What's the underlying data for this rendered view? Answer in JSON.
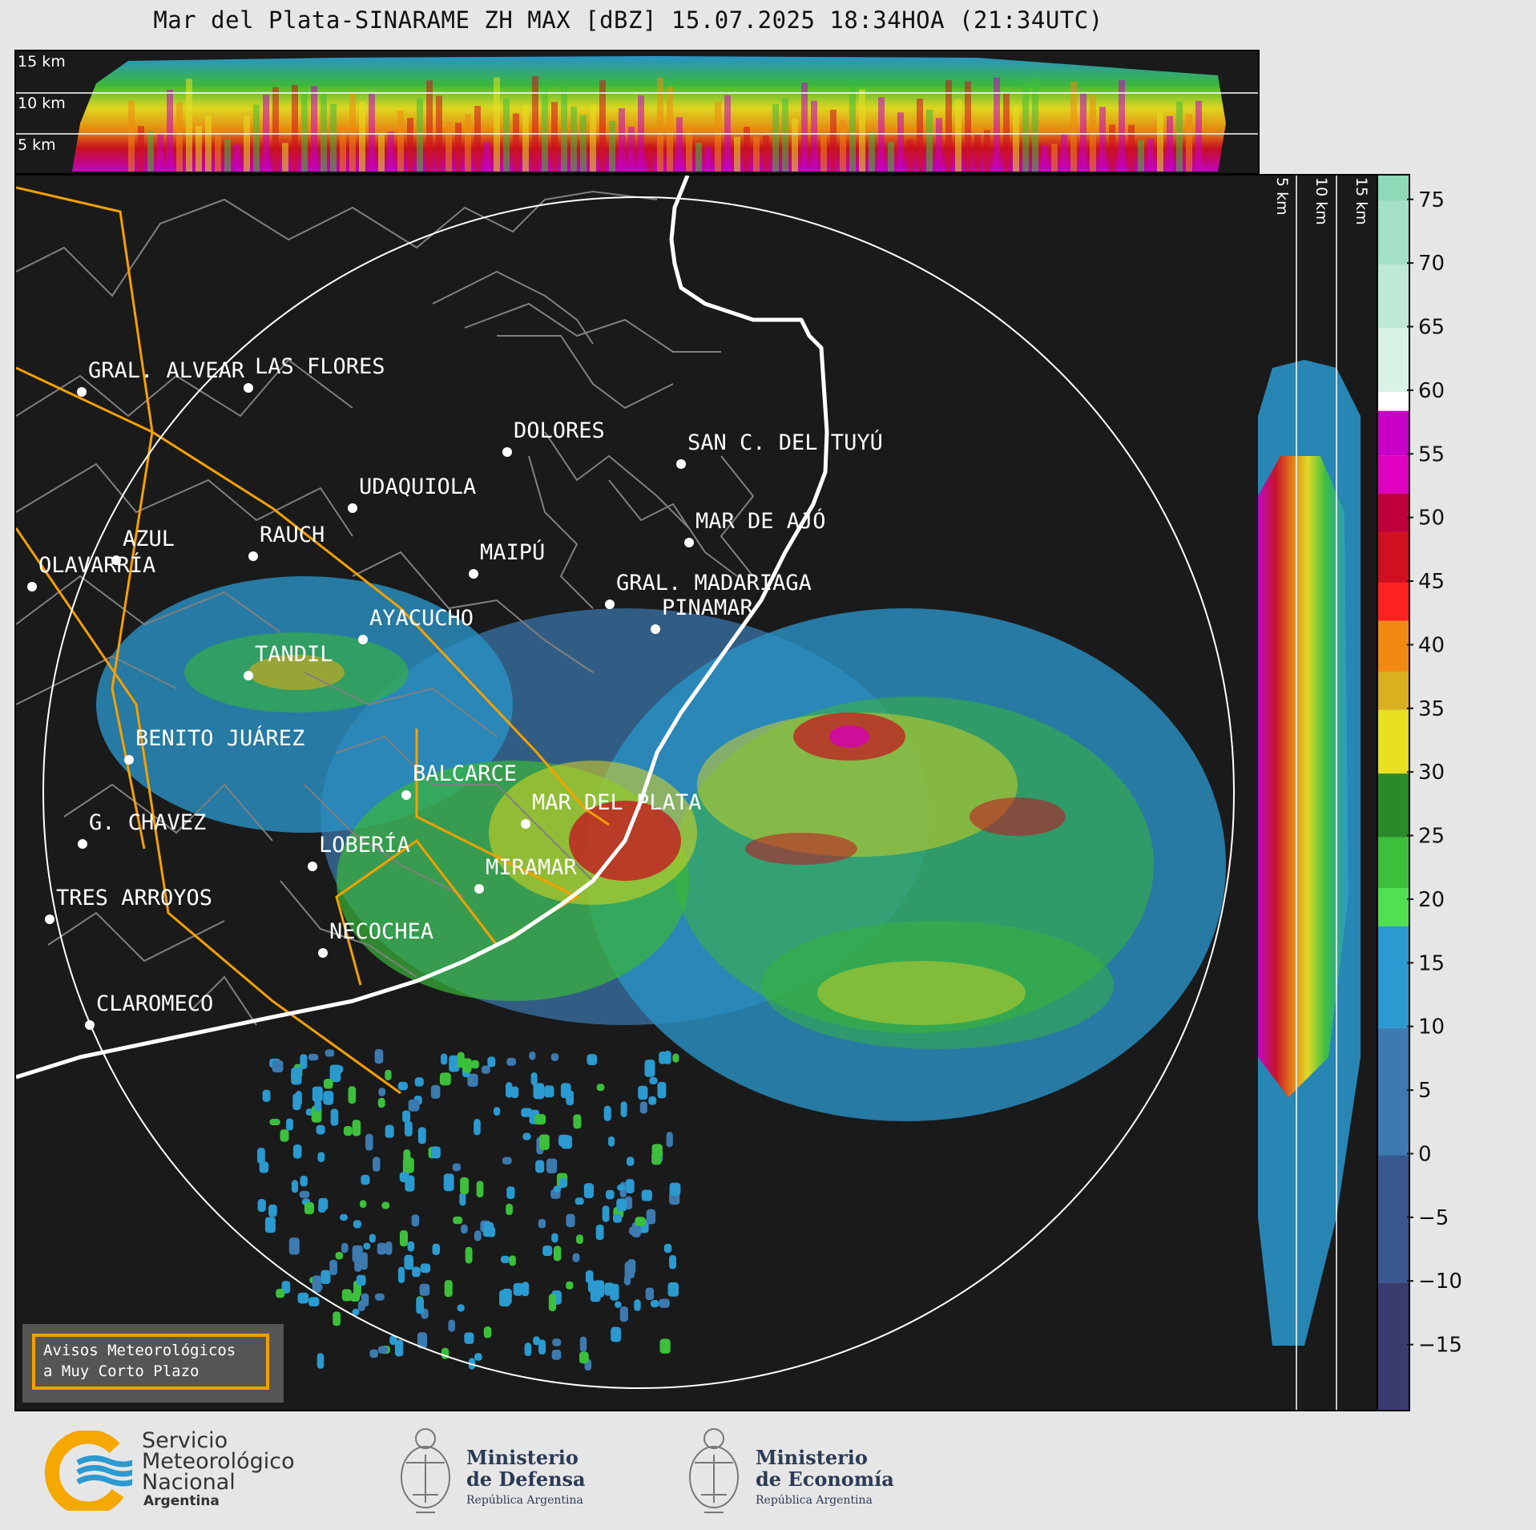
{
  "title": "Mar del Plata-SINARAME ZH MAX [dBZ] 15.07.2025 18:34HOA (21:34UTC)",
  "profile_top": {
    "height_labels": [
      "15 km",
      "10 km",
      "5 km"
    ]
  },
  "profile_side": {
    "height_labels": [
      "5 km",
      "10 km",
      "15 km"
    ]
  },
  "colorbar": {
    "ticks": [
      "75",
      "70",
      "65",
      "60",
      "55",
      "50",
      "45",
      "40",
      "35",
      "30",
      "25",
      "20",
      "15",
      "10",
      "5",
      "0",
      "−5",
      "−10",
      "−15"
    ],
    "bands": [
      {
        "from": 75,
        "to": 77,
        "color": "#8ed9b8"
      },
      {
        "from": 70,
        "to": 75,
        "color": "#a3e0c6"
      },
      {
        "from": 65,
        "to": 70,
        "color": "#bde9d5"
      },
      {
        "from": 60,
        "to": 65,
        "color": "#d8f2e6"
      },
      {
        "from": 58.5,
        "to": 60,
        "color": "#ffffff"
      },
      {
        "from": 55,
        "to": 58.5,
        "color": "#c800c8"
      },
      {
        "from": 52,
        "to": 55,
        "color": "#e000c0"
      },
      {
        "from": 49,
        "to": 52,
        "color": "#c0003c"
      },
      {
        "from": 45,
        "to": 49,
        "color": "#d01020"
      },
      {
        "from": 42,
        "to": 45,
        "color": "#ff2020"
      },
      {
        "from": 38,
        "to": 42,
        "color": "#f08a10"
      },
      {
        "from": 35,
        "to": 38,
        "color": "#d8b020"
      },
      {
        "from": 30,
        "to": 35,
        "color": "#e8e020"
      },
      {
        "from": 25,
        "to": 30,
        "color": "#2a8a2a"
      },
      {
        "from": 21,
        "to": 25,
        "color": "#3cc03c"
      },
      {
        "from": 18,
        "to": 21,
        "color": "#50e050"
      },
      {
        "from": 10,
        "to": 18,
        "color": "#2a9ad0"
      },
      {
        "from": 0,
        "to": 10,
        "color": "#3c7ab0"
      },
      {
        "from": -10,
        "to": 0,
        "color": "#3a5890"
      },
      {
        "from": -20,
        "to": -10,
        "color": "#3a3c70"
      }
    ]
  },
  "places": [
    {
      "name": "GRAL. ALVEAR",
      "color": "#ffffff"
    },
    {
      "name": "LAS FLORES",
      "color": "#ffffff"
    },
    {
      "name": "DOLORES",
      "color": "#ffffff"
    },
    {
      "name": "SAN C. DEL TUYÚ",
      "color": "#ffffff"
    },
    {
      "name": "UDAQUIOLA",
      "color": "#ffffff"
    },
    {
      "name": "MAR DE AJÓ",
      "color": "#ffffff"
    },
    {
      "name": "AZUL",
      "color": "#ffffff"
    },
    {
      "name": "RAUCH",
      "color": "#ffffff"
    },
    {
      "name": "MAIPÚ",
      "color": "#ffffff"
    },
    {
      "name": "OLAVARRÍA",
      "color": "#ffffff"
    },
    {
      "name": "GRAL. MADARIAGA",
      "color": "#ffffff"
    },
    {
      "name": "PINAMAR",
      "color": "#ffffff"
    },
    {
      "name": "AYACUCHO",
      "color": "#ffffff"
    },
    {
      "name": "TANDIL",
      "color": "#ffffff"
    },
    {
      "name": "BENITO JUÁREZ",
      "color": "#ffffff"
    },
    {
      "name": "BALCARCE",
      "color": "#ffffff"
    },
    {
      "name": "MAR DEL PLATA",
      "color": "#ffffff"
    },
    {
      "name": "G. CHAVEZ",
      "color": "#ffffff"
    },
    {
      "name": "LOBERÍA",
      "color": "#ffffff"
    },
    {
      "name": "MIRAMAR",
      "color": "#ffffff"
    },
    {
      "name": "TRES ARROYOS",
      "color": "#ffffff"
    },
    {
      "name": "NECOCHEA",
      "color": "#ffffff"
    },
    {
      "name": "CLAROMECO",
      "color": "#ffffff"
    }
  ],
  "warning_box": {
    "line1": "Avisos Meteorológicos",
    "line2": "a Muy Corto Plazo",
    "border_color": "#f5a000"
  },
  "logos": {
    "smn": {
      "line1": "Servicio",
      "line2": "Meteorológico",
      "line3": "Nacional",
      "line4": "Argentina"
    },
    "defensa": {
      "line1": "Ministerio",
      "line2": "de Defensa",
      "line3": "República Argentina"
    },
    "economia": {
      "line1": "Ministerio",
      "line2": "de Economía",
      "line3": "República Argentina"
    }
  },
  "colors": {
    "panel_bg": "#1a1a1a",
    "border_admin": "#808080",
    "warning_polygon": "#f5a000",
    "coast": "#ffffff",
    "range_ring": "#ffffff"
  }
}
